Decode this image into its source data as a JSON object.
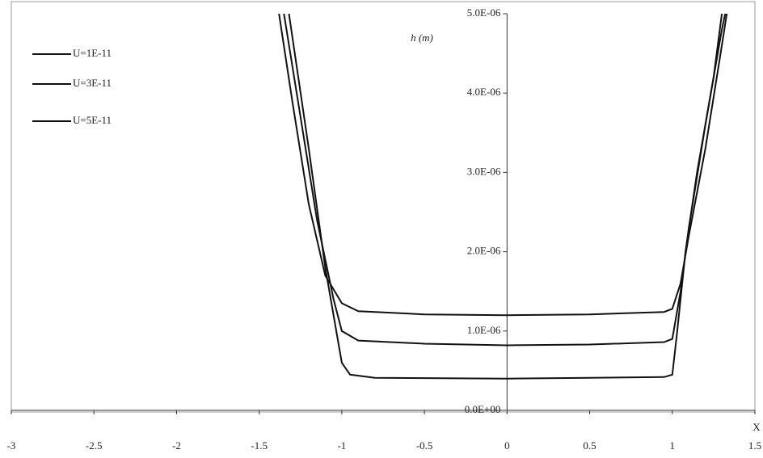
{
  "chart_data": {
    "type": "line",
    "y_label": "h (m)",
    "x_label": "X",
    "xlim": [
      -3,
      1.5
    ],
    "xticks": [
      -3,
      -2.5,
      -2,
      -1.5,
      -1,
      -0.5,
      0,
      0.5,
      1,
      1.5
    ],
    "ylim": [
      0,
      5e-06
    ],
    "yticks": [
      {
        "value": 0,
        "label": "0.0E+00"
      },
      {
        "value": 1e-06,
        "label": "1.0E-06"
      },
      {
        "value": 2e-06,
        "label": "2.0E-06"
      },
      {
        "value": 3e-06,
        "label": "3.0E-06"
      },
      {
        "value": 4e-06,
        "label": "4.0E-06"
      },
      {
        "value": 5e-06,
        "label": "5.0E-06"
      }
    ],
    "legend": "upper left",
    "series": [
      {
        "name": "U=1E-11",
        "color": "#111111",
        "x": [
          -1.32,
          -1.2,
          -1.1,
          -1.0,
          -0.95,
          -0.8,
          0,
          0.5,
          0.95,
          1.0,
          1.03,
          1.08,
          1.15,
          1.25,
          1.3
        ],
        "values": [
          5e-06,
          3.3e-06,
          1.8e-06,
          6e-07,
          4.5e-07,
          4.1e-07,
          4e-07,
          4.1e-07,
          4.2e-07,
          4.5e-07,
          1e-06,
          2e-06,
          3e-06,
          4.2e-06,
          5e-06
        ]
      },
      {
        "name": "U=3E-11",
        "color": "#111111",
        "x": [
          -1.35,
          -1.25,
          -1.15,
          -1.05,
          -1.0,
          -0.9,
          -0.5,
          0,
          0.5,
          0.95,
          1.0,
          1.05,
          1.1,
          1.2,
          1.3,
          1.32
        ],
        "values": [
          5e-06,
          3.7e-06,
          2.4e-06,
          1.4e-06,
          1e-06,
          8.8e-07,
          8.4e-07,
          8.2e-07,
          8.3e-07,
          8.6e-07,
          9e-07,
          1.5e-06,
          2.3e-06,
          3.6e-06,
          4.8e-06,
          5e-06
        ]
      },
      {
        "name": "U=5E-11",
        "color": "#111111",
        "x": [
          -1.38,
          -1.3,
          -1.2,
          -1.1,
          -1.0,
          -0.9,
          -0.5,
          0,
          0.5,
          0.95,
          1.0,
          1.05,
          1.1,
          1.2,
          1.3,
          1.33
        ],
        "values": [
          5e-06,
          3.9e-06,
          2.6e-06,
          1.7e-06,
          1.35e-06,
          1.25e-06,
          1.21e-06,
          1.2e-06,
          1.21e-06,
          1.24e-06,
          1.28e-06,
          1.6e-06,
          2.2e-06,
          3.3e-06,
          4.6e-06,
          5e-06
        ]
      }
    ]
  }
}
